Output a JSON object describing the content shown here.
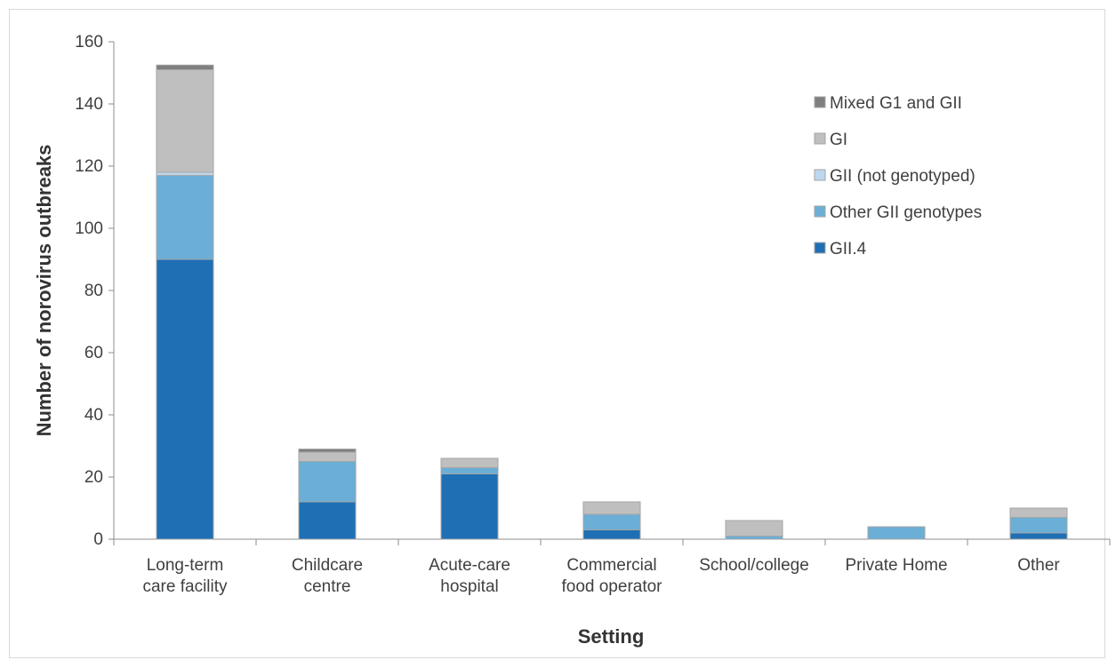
{
  "chart_data": {
    "type": "bar",
    "stacked": true,
    "title": "",
    "xlabel": "Setting",
    "ylabel": "Number of norovirus outbreaks",
    "ylim": [
      0,
      160
    ],
    "yticks": [
      0,
      20,
      40,
      60,
      80,
      100,
      120,
      140,
      160
    ],
    "grid": false,
    "legend_position": "top-right",
    "categories": [
      [
        "Long-term",
        "care facility"
      ],
      [
        "Childcare",
        "centre"
      ],
      [
        "Acute-care",
        "hospital"
      ],
      [
        "Commercial",
        "food operator"
      ],
      [
        "School/college"
      ],
      [
        "Private Home"
      ],
      [
        "Other"
      ]
    ],
    "series": [
      {
        "name": "GII.4",
        "color": "#1f6fb4",
        "values": [
          90,
          12,
          21,
          3,
          0,
          0,
          2
        ]
      },
      {
        "name": "Other GII genotypes",
        "color": "#6baed6",
        "values": [
          27,
          13,
          2,
          5,
          1,
          4,
          5
        ]
      },
      {
        "name": "GII (not genotyped)",
        "color": "#bdd7ee",
        "values": [
          1,
          0,
          0,
          0,
          0,
          0,
          0
        ]
      },
      {
        "name": "GI",
        "color": "#bfbfbf",
        "values": [
          33,
          3,
          3,
          4,
          5,
          0,
          3
        ]
      },
      {
        "name": "Mixed G1 and GII",
        "color": "#7f7f7f",
        "values": [
          1.5,
          1,
          0,
          0,
          0,
          0,
          0
        ]
      }
    ],
    "legend_order": [
      "Mixed G1 and GII",
      "GI",
      "GII (not genotyped)",
      "Other GII genotypes",
      "GII.4"
    ]
  }
}
